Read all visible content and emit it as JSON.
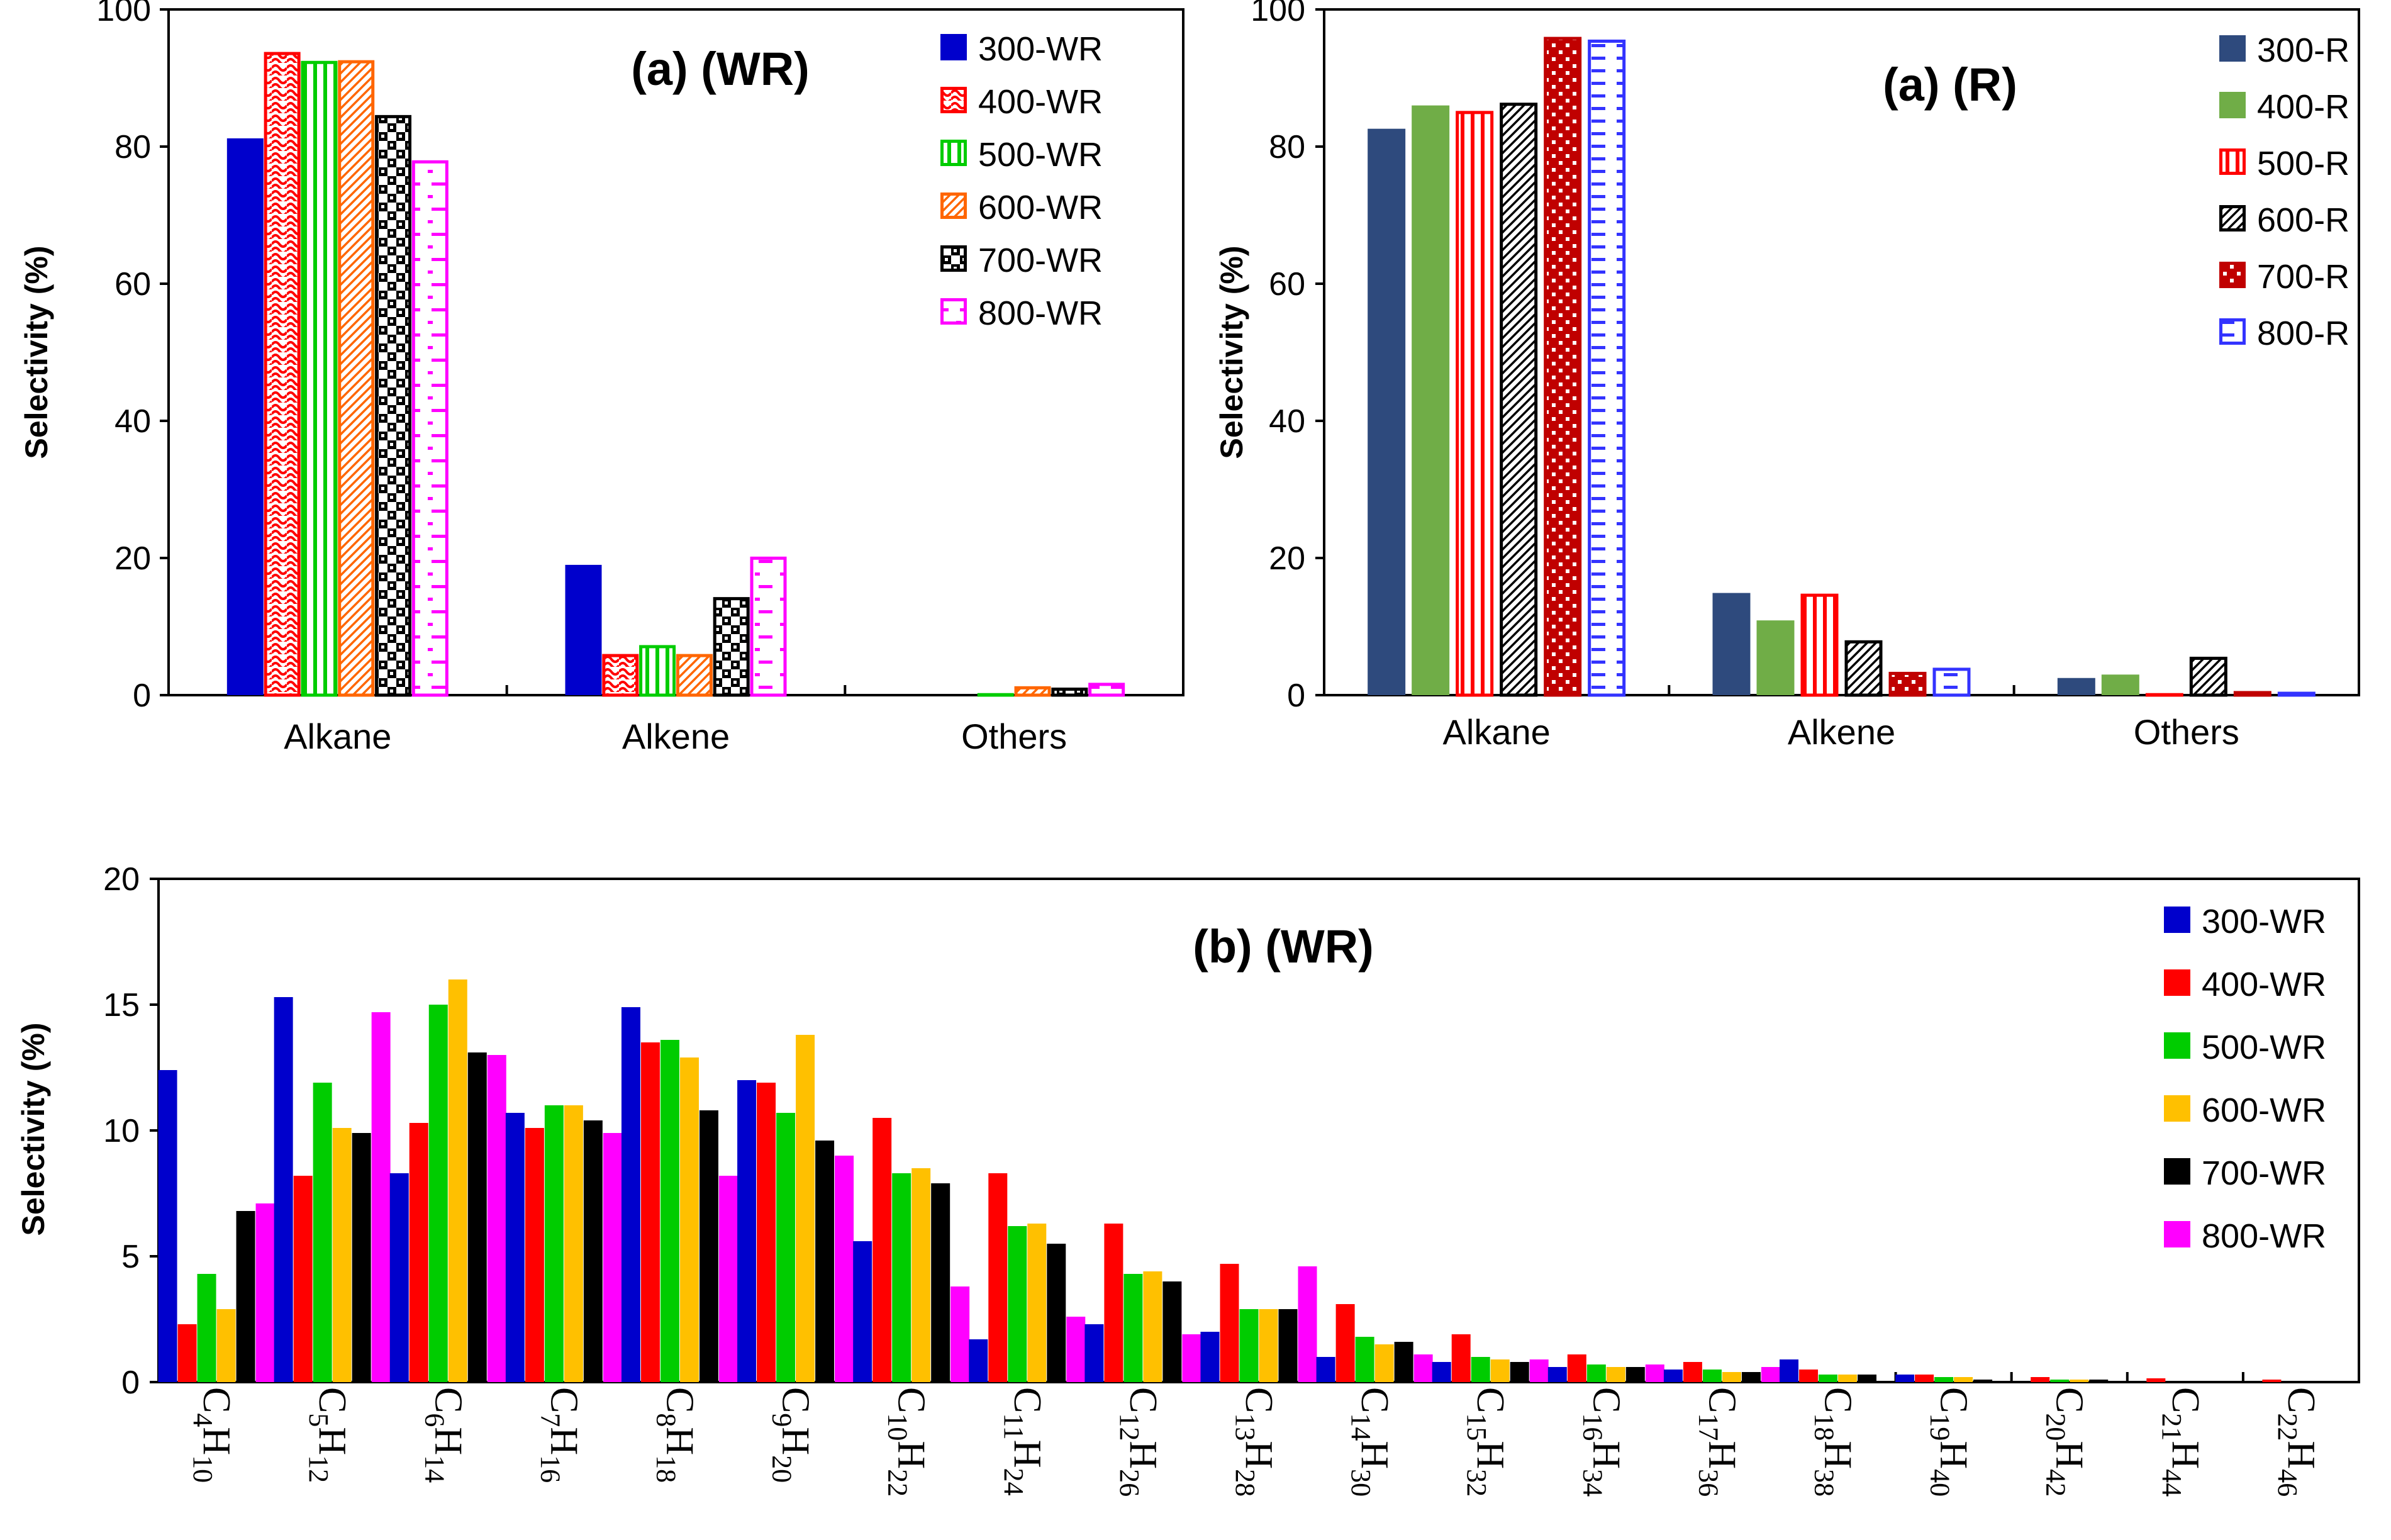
{
  "chart_data": [
    {
      "id": "a_wr",
      "type": "bar",
      "title": "(a) (WR)",
      "xlabel": "",
      "ylabel": "Selectivity (%)",
      "ylim": [
        0,
        100
      ],
      "yticks": [
        0,
        20,
        40,
        60,
        80,
        100
      ],
      "categories": [
        "Alkane",
        "Alkene",
        "Others"
      ],
      "legend_position": "top-right",
      "series": [
        {
          "name": "300-WR",
          "color": "#0000CC",
          "pattern": "solid",
          "values": [
            81.2,
            19.0,
            0.0
          ]
        },
        {
          "name": "400-WR",
          "color": "#FF0000",
          "pattern": "wave",
          "values": [
            93.8,
            6.0,
            0.2
          ]
        },
        {
          "name": "500-WR",
          "color": "#00CC00",
          "pattern": "vlines",
          "values": [
            92.5,
            7.3,
            0.3
          ]
        },
        {
          "name": "600-WR",
          "color": "#FF6600",
          "pattern": "diag",
          "values": [
            92.6,
            6.0,
            1.3
          ]
        },
        {
          "name": "700-WR",
          "color": "#000000",
          "pattern": "checker",
          "values": [
            84.6,
            14.3,
            1.1
          ]
        },
        {
          "name": "800-WR",
          "color": "#FF00FF",
          "pattern": "hdash",
          "values": [
            78.0,
            20.2,
            1.8
          ]
        }
      ]
    },
    {
      "id": "a_r",
      "type": "bar",
      "title": "(a) (R)",
      "xlabel": "",
      "ylabel": "Selectivity (%)",
      "ylim": [
        0,
        100
      ],
      "yticks": [
        0,
        20,
        40,
        60,
        80,
        100
      ],
      "categories": [
        "Alkane",
        "Alkene",
        "Others"
      ],
      "legend_position": "top-right",
      "series": [
        {
          "name": "300-R",
          "color": "#2E4A7D",
          "pattern": "solid",
          "values": [
            82.6,
            14.9,
            2.5
          ]
        },
        {
          "name": "400-R",
          "color": "#70AD47",
          "pattern": "solid",
          "values": [
            86.0,
            10.9,
            3.0
          ]
        },
        {
          "name": "500-R",
          "color": "#FF0000",
          "pattern": "vlines",
          "values": [
            85.2,
            14.8,
            0.3
          ]
        },
        {
          "name": "600-R",
          "color": "#000000",
          "pattern": "diag",
          "values": [
            86.4,
            8.0,
            5.6
          ]
        },
        {
          "name": "700-R",
          "color": "#C00000",
          "pattern": "dots",
          "values": [
            96.0,
            3.4,
            0.6
          ]
        },
        {
          "name": "800-R",
          "color": "#3333FF",
          "pattern": "hdash",
          "values": [
            95.6,
            4.0,
            0.5
          ]
        }
      ]
    },
    {
      "id": "b_wr",
      "type": "bar",
      "title": "(b) (WR)",
      "xlabel": "",
      "ylabel": "Selectivity (%)",
      "ylim": [
        0,
        20
      ],
      "yticks": [
        0,
        5,
        10,
        15,
        20
      ],
      "categories": [
        {
          "c": "C",
          "n": "4",
          "h": "H",
          "m": "10"
        },
        {
          "c": "C",
          "n": "5",
          "h": "H",
          "m": "12"
        },
        {
          "c": "C",
          "n": "6",
          "h": "H",
          "m": "14"
        },
        {
          "c": "C",
          "n": "7",
          "h": "H",
          "m": "16"
        },
        {
          "c": "C",
          "n": "8",
          "h": "H",
          "m": "18"
        },
        {
          "c": "C",
          "n": "9",
          "h": "H",
          "m": "20"
        },
        {
          "c": "C",
          "n": "10",
          "h": "H",
          "m": "22"
        },
        {
          "c": "C",
          "n": "11",
          "h": "H",
          "m": "24"
        },
        {
          "c": "C",
          "n": "12",
          "h": "H",
          "m": "26"
        },
        {
          "c": "C",
          "n": "13",
          "h": "H",
          "m": "28"
        },
        {
          "c": "C",
          "n": "14",
          "h": "H",
          "m": "30"
        },
        {
          "c": "C",
          "n": "15",
          "h": "H",
          "m": "32"
        },
        {
          "c": "C",
          "n": "16",
          "h": "H",
          "m": "34"
        },
        {
          "c": "C",
          "n": "17",
          "h": "H",
          "m": "36"
        },
        {
          "c": "C",
          "n": "18",
          "h": "H",
          "m": "38"
        },
        {
          "c": "C",
          "n": "19",
          "h": "H",
          "m": "40"
        },
        {
          "c": "C",
          "n": "20",
          "h": "H",
          "m": "42"
        },
        {
          "c": "C",
          "n": "21",
          "h": "H",
          "m": "44"
        },
        {
          "c": "C",
          "n": "22",
          "h": "H",
          "m": "46"
        }
      ],
      "legend_position": "top-right",
      "series": [
        {
          "name": "300-WR",
          "color": "#0000CC",
          "pattern": "solid",
          "values": [
            12.4,
            15.3,
            8.3,
            10.7,
            14.9,
            12.0,
            5.6,
            1.7,
            2.3,
            2.0,
            1.0,
            0.8,
            0.6,
            0.5,
            0.9,
            0.3,
            0.0,
            0.0,
            0.0
          ]
        },
        {
          "name": "400-WR",
          "color": "#FF0000",
          "pattern": "solid",
          "values": [
            2.3,
            8.2,
            10.3,
            10.1,
            13.5,
            11.9,
            10.5,
            8.3,
            6.3,
            4.7,
            3.1,
            1.9,
            1.1,
            0.8,
            0.5,
            0.3,
            0.2,
            0.15,
            0.1
          ]
        },
        {
          "name": "500-WR",
          "color": "#00CC00",
          "pattern": "solid",
          "values": [
            4.3,
            11.9,
            15.0,
            11.0,
            13.6,
            10.7,
            8.3,
            6.2,
            4.3,
            2.9,
            1.8,
            1.0,
            0.7,
            0.5,
            0.3,
            0.2,
            0.1,
            0.0,
            0.0
          ]
        },
        {
          "name": "600-WR",
          "color": "#FFC000",
          "pattern": "solid",
          "values": [
            2.9,
            10.1,
            16.0,
            11.0,
            12.9,
            13.8,
            8.5,
            6.3,
            4.4,
            2.9,
            1.5,
            0.9,
            0.6,
            0.4,
            0.3,
            0.2,
            0.1,
            0.0,
            0.0
          ]
        },
        {
          "name": "700-WR",
          "color": "#000000",
          "pattern": "solid",
          "values": [
            6.8,
            9.9,
            13.1,
            10.4,
            10.8,
            9.6,
            7.9,
            5.5,
            4.0,
            2.9,
            1.6,
            0.8,
            0.6,
            0.4,
            0.3,
            0.1,
            0.1,
            0.05,
            0.0
          ]
        },
        {
          "name": "800-WR",
          "color": "#FF00FF",
          "pattern": "solid",
          "values": [
            7.1,
            14.7,
            13.0,
            9.9,
            8.2,
            9.0,
            3.8,
            2.6,
            1.9,
            4.6,
            1.1,
            0.9,
            0.7,
            0.6,
            0.0,
            0.0,
            0.0,
            0.0,
            0.0
          ]
        }
      ]
    }
  ]
}
